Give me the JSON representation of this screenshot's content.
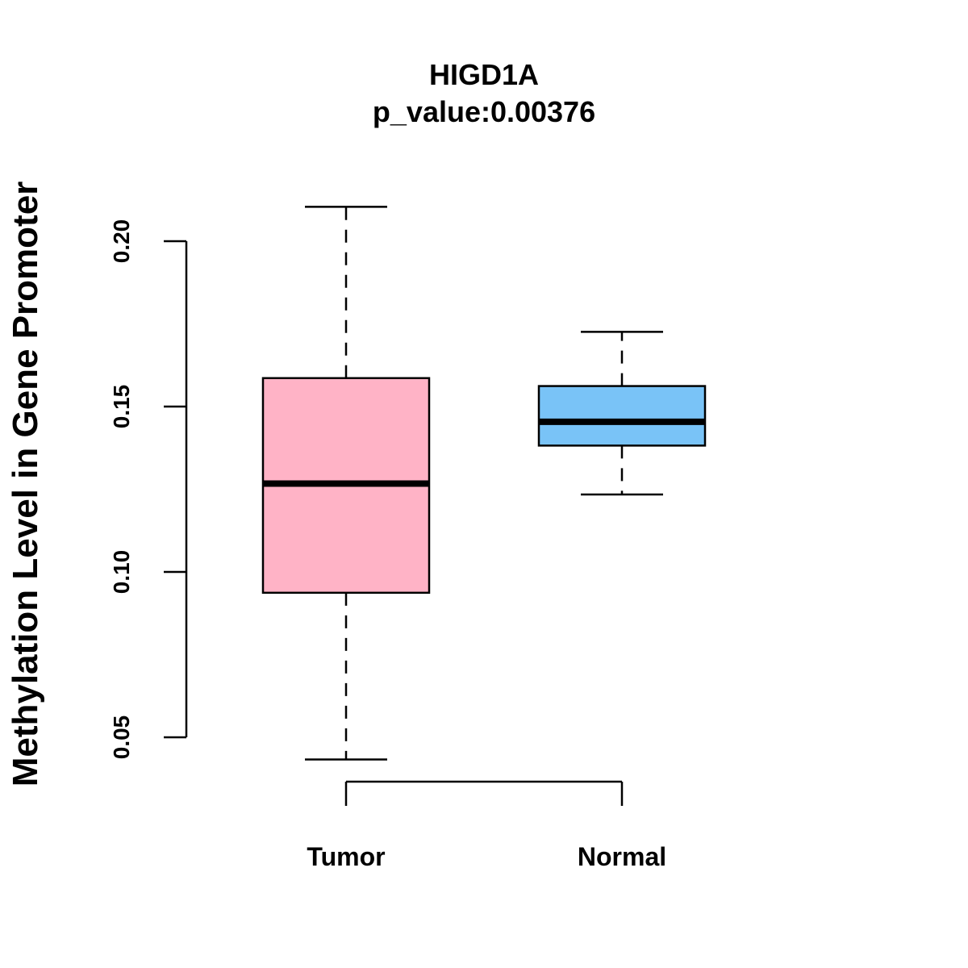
{
  "chart_data": {
    "type": "box",
    "title": "HIGD1A",
    "subtitle": "p_value:0.00376",
    "ylabel": "Methylation Level in Gene Promoter",
    "xlabel": "",
    "ylim": [
      0.05,
      0.2
    ],
    "yticks": [
      0.05,
      0.1,
      0.15,
      0.2
    ],
    "ytick_labels": [
      "0.05",
      "0.10",
      "0.15",
      "0.20"
    ],
    "categories": [
      "Tumor",
      "Normal"
    ],
    "boxes": [
      {
        "name": "Tumor",
        "whisker_low": 0.0433,
        "q1": 0.0937,
        "median": 0.1267,
        "q3": 0.1586,
        "whisker_high": 0.2104,
        "color": "#FFB3C6"
      },
      {
        "name": "Normal",
        "whisker_low": 0.1234,
        "q1": 0.1382,
        "median": 0.1454,
        "q3": 0.1562,
        "whisker_high": 0.1726,
        "color": "#79C3F7"
      }
    ],
    "grid": false,
    "legend": "none"
  }
}
